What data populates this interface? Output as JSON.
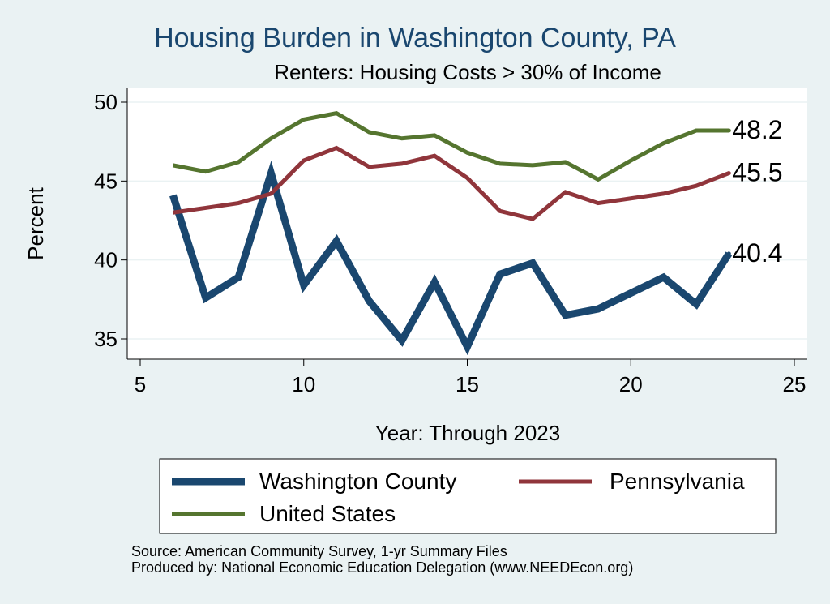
{
  "chart_data": {
    "type": "line",
    "title": "Housing Burden in Washington County, PA",
    "subtitle": "Renters: Housing Costs > 30% of Income",
    "xlabel": "Year: Through 2023",
    "ylabel": "Percent",
    "xlim": [
      5,
      25
    ],
    "ylim": [
      34.5,
      50.5
    ],
    "xticks": [
      5,
      10,
      15,
      20,
      25
    ],
    "yticks": [
      35,
      40,
      45,
      50
    ],
    "grid": "horizontal",
    "legend_position": "bottom",
    "x": [
      6,
      7,
      8,
      9,
      10,
      11,
      12,
      13,
      14,
      15,
      16,
      17,
      18,
      19,
      20,
      21,
      22,
      23
    ],
    "series": [
      {
        "name": "Washington County",
        "color": "#1a476f",
        "width": "thick",
        "values": [
          44.1,
          37.6,
          38.9,
          45.5,
          38.4,
          41.2,
          37.4,
          34.9,
          38.6,
          34.5,
          39.1,
          39.8,
          36.5,
          36.9,
          37.9,
          38.9,
          37.2,
          40.4
        ],
        "end_label": "40.4"
      },
      {
        "name": "Pennsylvania",
        "color": "#90353b",
        "width": "medium",
        "values": [
          43.0,
          43.3,
          43.6,
          44.2,
          46.3,
          47.1,
          45.9,
          46.1,
          46.6,
          45.2,
          43.1,
          42.6,
          44.3,
          43.6,
          43.9,
          44.2,
          44.7,
          45.5
        ],
        "end_label": "45.5"
      },
      {
        "name": "United States",
        "color": "#55752f",
        "width": "medium",
        "values": [
          46.0,
          45.6,
          46.2,
          47.7,
          48.9,
          49.3,
          48.1,
          47.7,
          47.9,
          46.8,
          46.1,
          46.0,
          46.2,
          45.1,
          46.3,
          47.4,
          48.2,
          48.2
        ],
        "end_label": "48.2"
      }
    ],
    "notes": [
      "Source: American Community Survey, 1-yr Summary Files",
      "Produced by: National Economic Education Delegation (www.NEEDEcon.org)"
    ]
  }
}
